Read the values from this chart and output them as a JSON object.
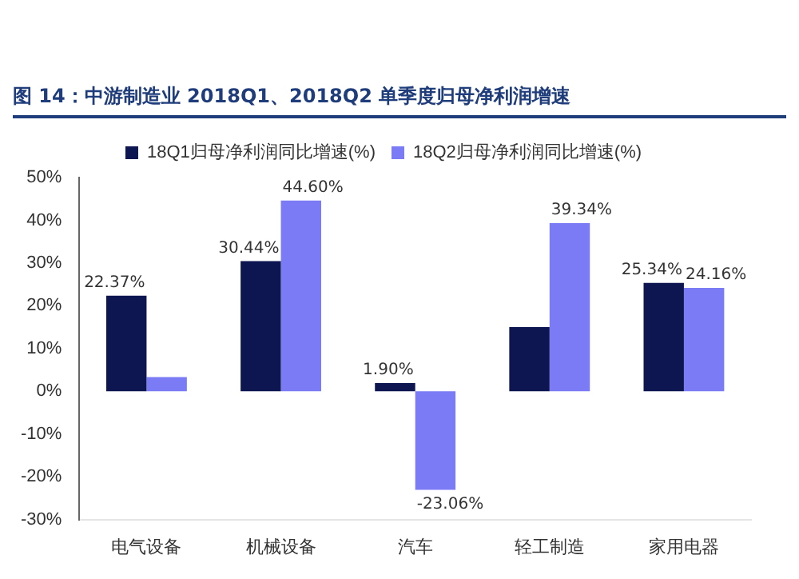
{
  "chart_data": {
    "type": "bar",
    "title": "图 14：中游制造业 2018Q1、2018Q2 单季度归母净利润增速",
    "categories": [
      "电气设备",
      "机械设备",
      "汽车",
      "轻工制造",
      "家用电器"
    ],
    "series": [
      {
        "name": "18Q1归母净利润同比增速(%)",
        "color": "#0d1650",
        "values": [
          22.37,
          30.44,
          1.9,
          15,
          25.34
        ],
        "value_labels": [
          "22.37%",
          "30.44%",
          "1.90%",
          null,
          "25.34%"
        ]
      },
      {
        "name": "18Q2归母净利润同比增速(%)",
        "color": "#7b7bf5",
        "values": [
          3.3,
          44.6,
          -23.06,
          39.34,
          24.16
        ],
        "value_labels": [
          null,
          "44.60%",
          "-23.06%",
          "39.34%",
          "24.16%"
        ]
      }
    ],
    "ylim": [
      -30,
      50
    ],
    "yticks": [
      {
        "value": -30,
        "label": "-30%"
      },
      {
        "value": -20,
        "label": "-20%"
      },
      {
        "value": -10,
        "label": "-10%"
      },
      {
        "value": 0,
        "label": "0%"
      },
      {
        "value": 10,
        "label": "10%"
      },
      {
        "value": 20,
        "label": "20%"
      },
      {
        "value": 30,
        "label": "30%"
      },
      {
        "value": 40,
        "label": "40%"
      },
      {
        "value": 50,
        "label": "50%"
      }
    ],
    "grid": false,
    "legend": "top"
  }
}
